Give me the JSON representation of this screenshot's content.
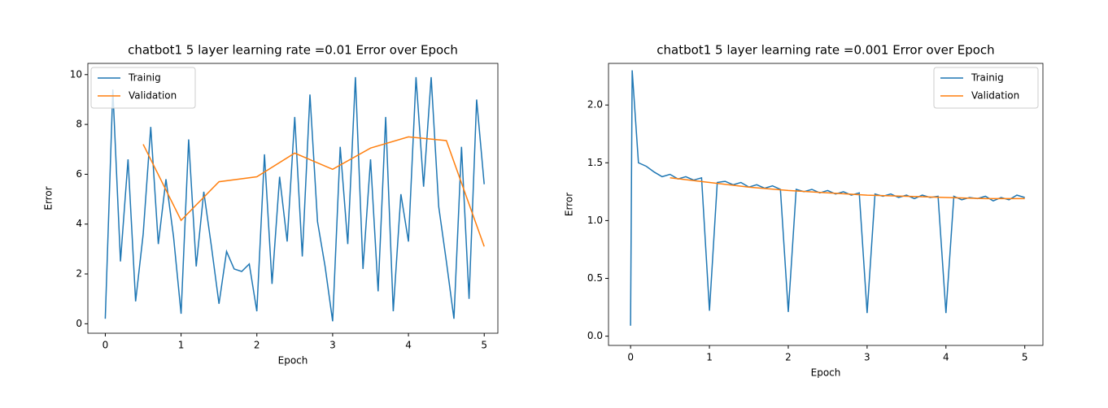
{
  "chart_data": [
    {
      "type": "line",
      "title": "chatbot1 5 layer learning rate =0.01 Error over Epoch",
      "x_label": "Epoch",
      "y_label": "Error",
      "xlim": [
        -0.23,
        5.18
      ],
      "ylim": [
        -0.38,
        10.45
      ],
      "xticks": [
        0,
        1,
        2,
        3,
        4,
        5
      ],
      "yticks": [
        0,
        2,
        4,
        6,
        8,
        10
      ],
      "legend": "upper left",
      "series": [
        {
          "name": "Trainig",
          "color": "#1f77b4",
          "x": [
            0,
            0.1,
            0.2,
            0.3,
            0.4,
            0.5,
            0.6,
            0.7,
            0.8,
            0.9,
            1.0,
            1.1,
            1.2,
            1.3,
            1.4,
            1.5,
            1.6,
            1.7,
            1.8,
            1.9,
            2.0,
            2.1,
            2.2,
            2.3,
            2.4,
            2.5,
            2.6,
            2.7,
            2.8,
            2.9,
            3.0,
            3.1,
            3.2,
            3.3,
            3.4,
            3.5,
            3.6,
            3.7,
            3.8,
            3.9,
            4.0,
            4.1,
            4.2,
            4.3,
            4.4,
            4.5,
            4.6,
            4.7,
            4.8,
            4.9,
            5.0
          ],
          "values": [
            0.2,
            9.4,
            2.5,
            6.6,
            0.9,
            3.6,
            7.9,
            3.2,
            5.8,
            3.5,
            0.4,
            7.4,
            2.3,
            5.3,
            3.1,
            0.8,
            2.9,
            2.2,
            2.1,
            2.4,
            0.5,
            6.8,
            1.6,
            5.9,
            3.3,
            8.3,
            2.7,
            9.2,
            4.1,
            2.3,
            0.1,
            7.1,
            3.2,
            9.9,
            2.2,
            6.6,
            1.3,
            8.3,
            0.5,
            5.2,
            3.3,
            9.9,
            5.5,
            9.9,
            4.7,
            2.5,
            0.2,
            7.1,
            1.0,
            9.0,
            5.6
          ]
        },
        {
          "name": "Validation",
          "color": "#ff7f0e",
          "x": [
            0.5,
            1.0,
            1.5,
            2.0,
            2.5,
            3.0,
            3.5,
            4.0,
            4.5,
            5.0
          ],
          "values": [
            7.2,
            4.15,
            5.7,
            5.9,
            6.85,
            6.2,
            7.05,
            7.5,
            7.35,
            3.1
          ]
        }
      ]
    },
    {
      "type": "line",
      "title": "chatbot1 5 layer learning rate =0.001 Error over Epoch",
      "x_label": "Epoch",
      "y_label": "Error",
      "xlim": [
        -0.28,
        5.23
      ],
      "ylim": [
        -0.08,
        2.36
      ],
      "xticks": [
        0,
        1,
        2,
        3,
        4,
        5
      ],
      "yticks": [
        {
          "value": 0,
          "label": "0.0"
        },
        0.5,
        {
          "value": 1,
          "label": "1.0"
        },
        1.5,
        {
          "value": 2,
          "label": "2.0"
        }
      ],
      "legend": "upper right",
      "series": [
        {
          "name": "Trainig",
          "color": "#1f77b4",
          "x": [
            0,
            0.02,
            0.1,
            0.2,
            0.3,
            0.4,
            0.5,
            0.6,
            0.7,
            0.8,
            0.9,
            1.0,
            1.1,
            1.2,
            1.3,
            1.4,
            1.5,
            1.6,
            1.7,
            1.8,
            1.9,
            2.0,
            2.1,
            2.2,
            2.3,
            2.4,
            2.5,
            2.6,
            2.7,
            2.8,
            2.9,
            3.0,
            3.1,
            3.2,
            3.3,
            3.4,
            3.5,
            3.6,
            3.7,
            3.8,
            3.9,
            4.0,
            4.1,
            4.2,
            4.3,
            4.4,
            4.5,
            4.6,
            4.7,
            4.8,
            4.9,
            5.0
          ],
          "values": [
            0.09,
            2.3,
            1.5,
            1.47,
            1.42,
            1.38,
            1.4,
            1.36,
            1.38,
            1.35,
            1.37,
            0.22,
            1.33,
            1.34,
            1.31,
            1.33,
            1.29,
            1.31,
            1.28,
            1.3,
            1.27,
            0.21,
            1.27,
            1.25,
            1.27,
            1.24,
            1.26,
            1.23,
            1.25,
            1.22,
            1.24,
            0.2,
            1.23,
            1.21,
            1.23,
            1.2,
            1.22,
            1.19,
            1.22,
            1.2,
            1.21,
            0.2,
            1.21,
            1.18,
            1.2,
            1.19,
            1.21,
            1.17,
            1.2,
            1.18,
            1.22,
            1.2
          ]
        },
        {
          "name": "Validation",
          "color": "#ff7f0e",
          "x": [
            0.5,
            1.0,
            1.5,
            2.0,
            2.5,
            3.0,
            3.5,
            4.0,
            4.5,
            5.0
          ],
          "values": [
            1.37,
            1.33,
            1.29,
            1.26,
            1.24,
            1.22,
            1.21,
            1.2,
            1.19,
            1.19
          ]
        }
      ]
    }
  ]
}
